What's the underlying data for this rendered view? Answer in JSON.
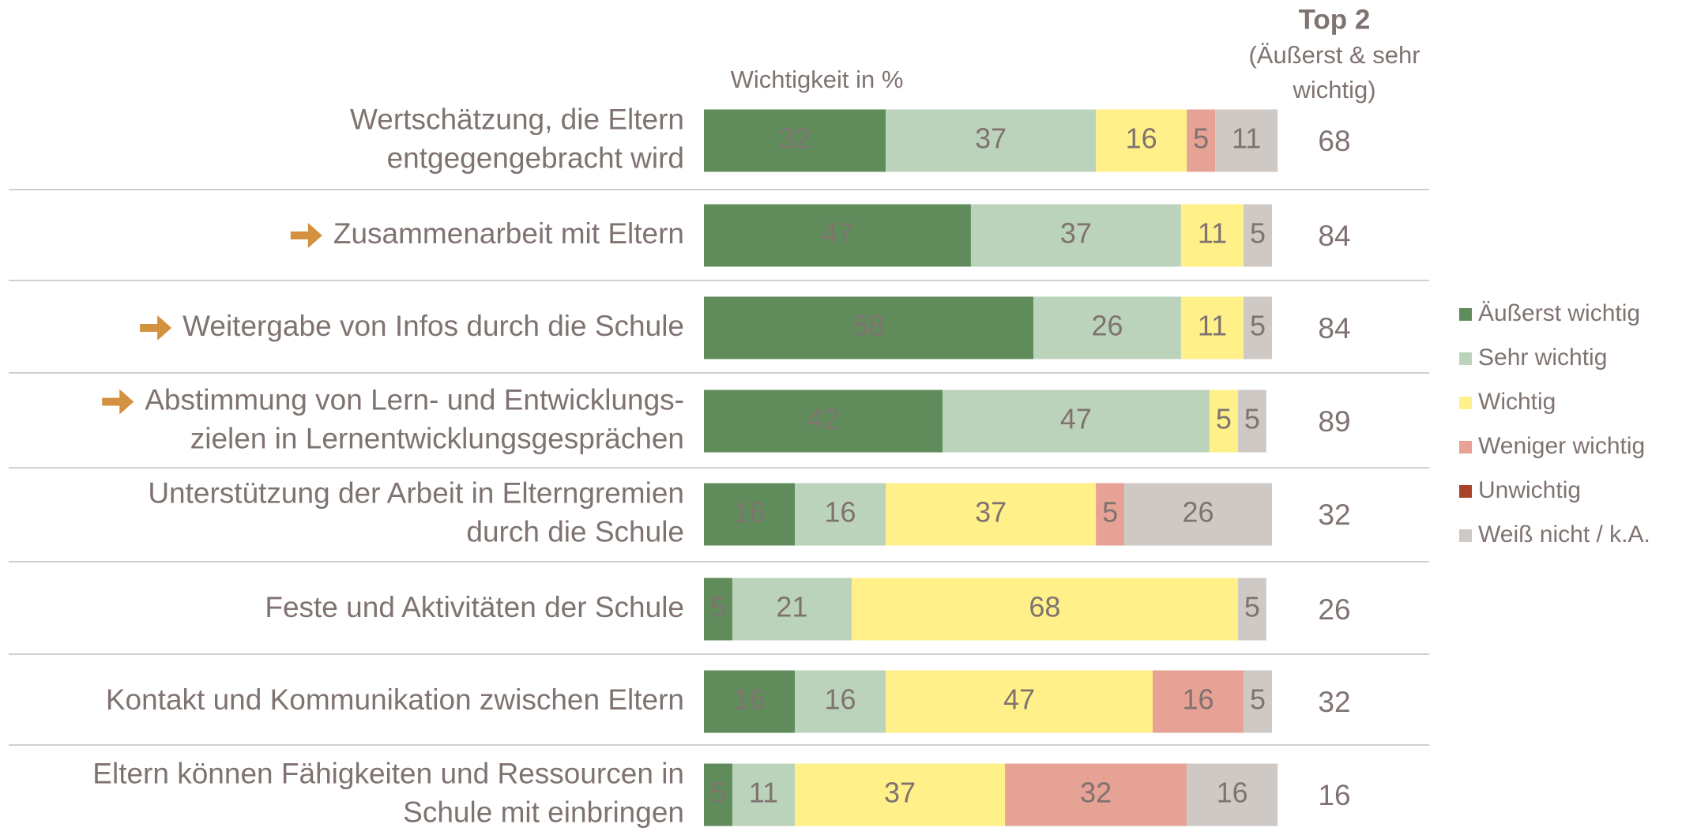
{
  "chart_data": {
    "type": "stacked-bar-horizontal",
    "axis_label": "Wichtigkeit in %",
    "categories": [
      [
        "Wertschätzung, die Eltern",
        "entgegengebracht wird"
      ],
      [
        "Zusammenarbeit mit Eltern"
      ],
      [
        "Weitergabe von Infos durch die Schule"
      ],
      [
        "Abstimmung von Lern- und Entwicklungs-",
        "zielen in Lernentwicklungsgesprächen"
      ],
      [
        "Unterstützung der Arbeit in Elterngremien",
        "durch die Schule"
      ],
      [
        "Feste und Aktivitäten der Schule"
      ],
      [
        "Kontakt und Kommunikation zwischen Eltern"
      ],
      [
        "Eltern können Fähigkeiten und Ressourcen in",
        "Schule mit einbringen"
      ]
    ],
    "highlight": [
      false,
      true,
      true,
      true,
      false,
      false,
      false,
      false
    ],
    "highlight_color": "#d4913f",
    "xlim": [
      0,
      100
    ],
    "series": [
      {
        "name": "Äußerst wichtig",
        "color": "#5f8c5a",
        "label_color": "#ffffff",
        "values": [
          32,
          47,
          58,
          42,
          16,
          5,
          16,
          5
        ]
      },
      {
        "name": "Sehr wichtig",
        "color": "#bcd3bb",
        "label_color": "#7f7370",
        "values": [
          37,
          37,
          26,
          47,
          16,
          21,
          16,
          11
        ]
      },
      {
        "name": "Wichtig",
        "color": "#fff08a",
        "label_color": "#7f7370",
        "values": [
          16,
          11,
          11,
          5,
          37,
          68,
          47,
          37
        ]
      },
      {
        "name": "Weniger wichtig",
        "color": "#e6a295",
        "label_color": "#7f7370",
        "values": [
          5,
          0,
          0,
          0,
          5,
          0,
          16,
          32
        ]
      },
      {
        "name": "Unwichtig",
        "color": "#a8432a",
        "label_color": "#ffffff",
        "values": [
          0,
          0,
          0,
          0,
          0,
          0,
          0,
          0
        ]
      },
      {
        "name": "Weiß nicht / k.A.",
        "color": "#cfc9c6",
        "label_color": "#7f7370",
        "values": [
          11,
          5,
          5,
          5,
          26,
          5,
          5,
          16
        ]
      }
    ],
    "top2": {
      "title": "Top 2",
      "subtitle": [
        "(Äußerst & sehr",
        "wichtig)"
      ],
      "values": [
        68,
        84,
        84,
        89,
        32,
        26,
        32,
        16
      ]
    }
  }
}
